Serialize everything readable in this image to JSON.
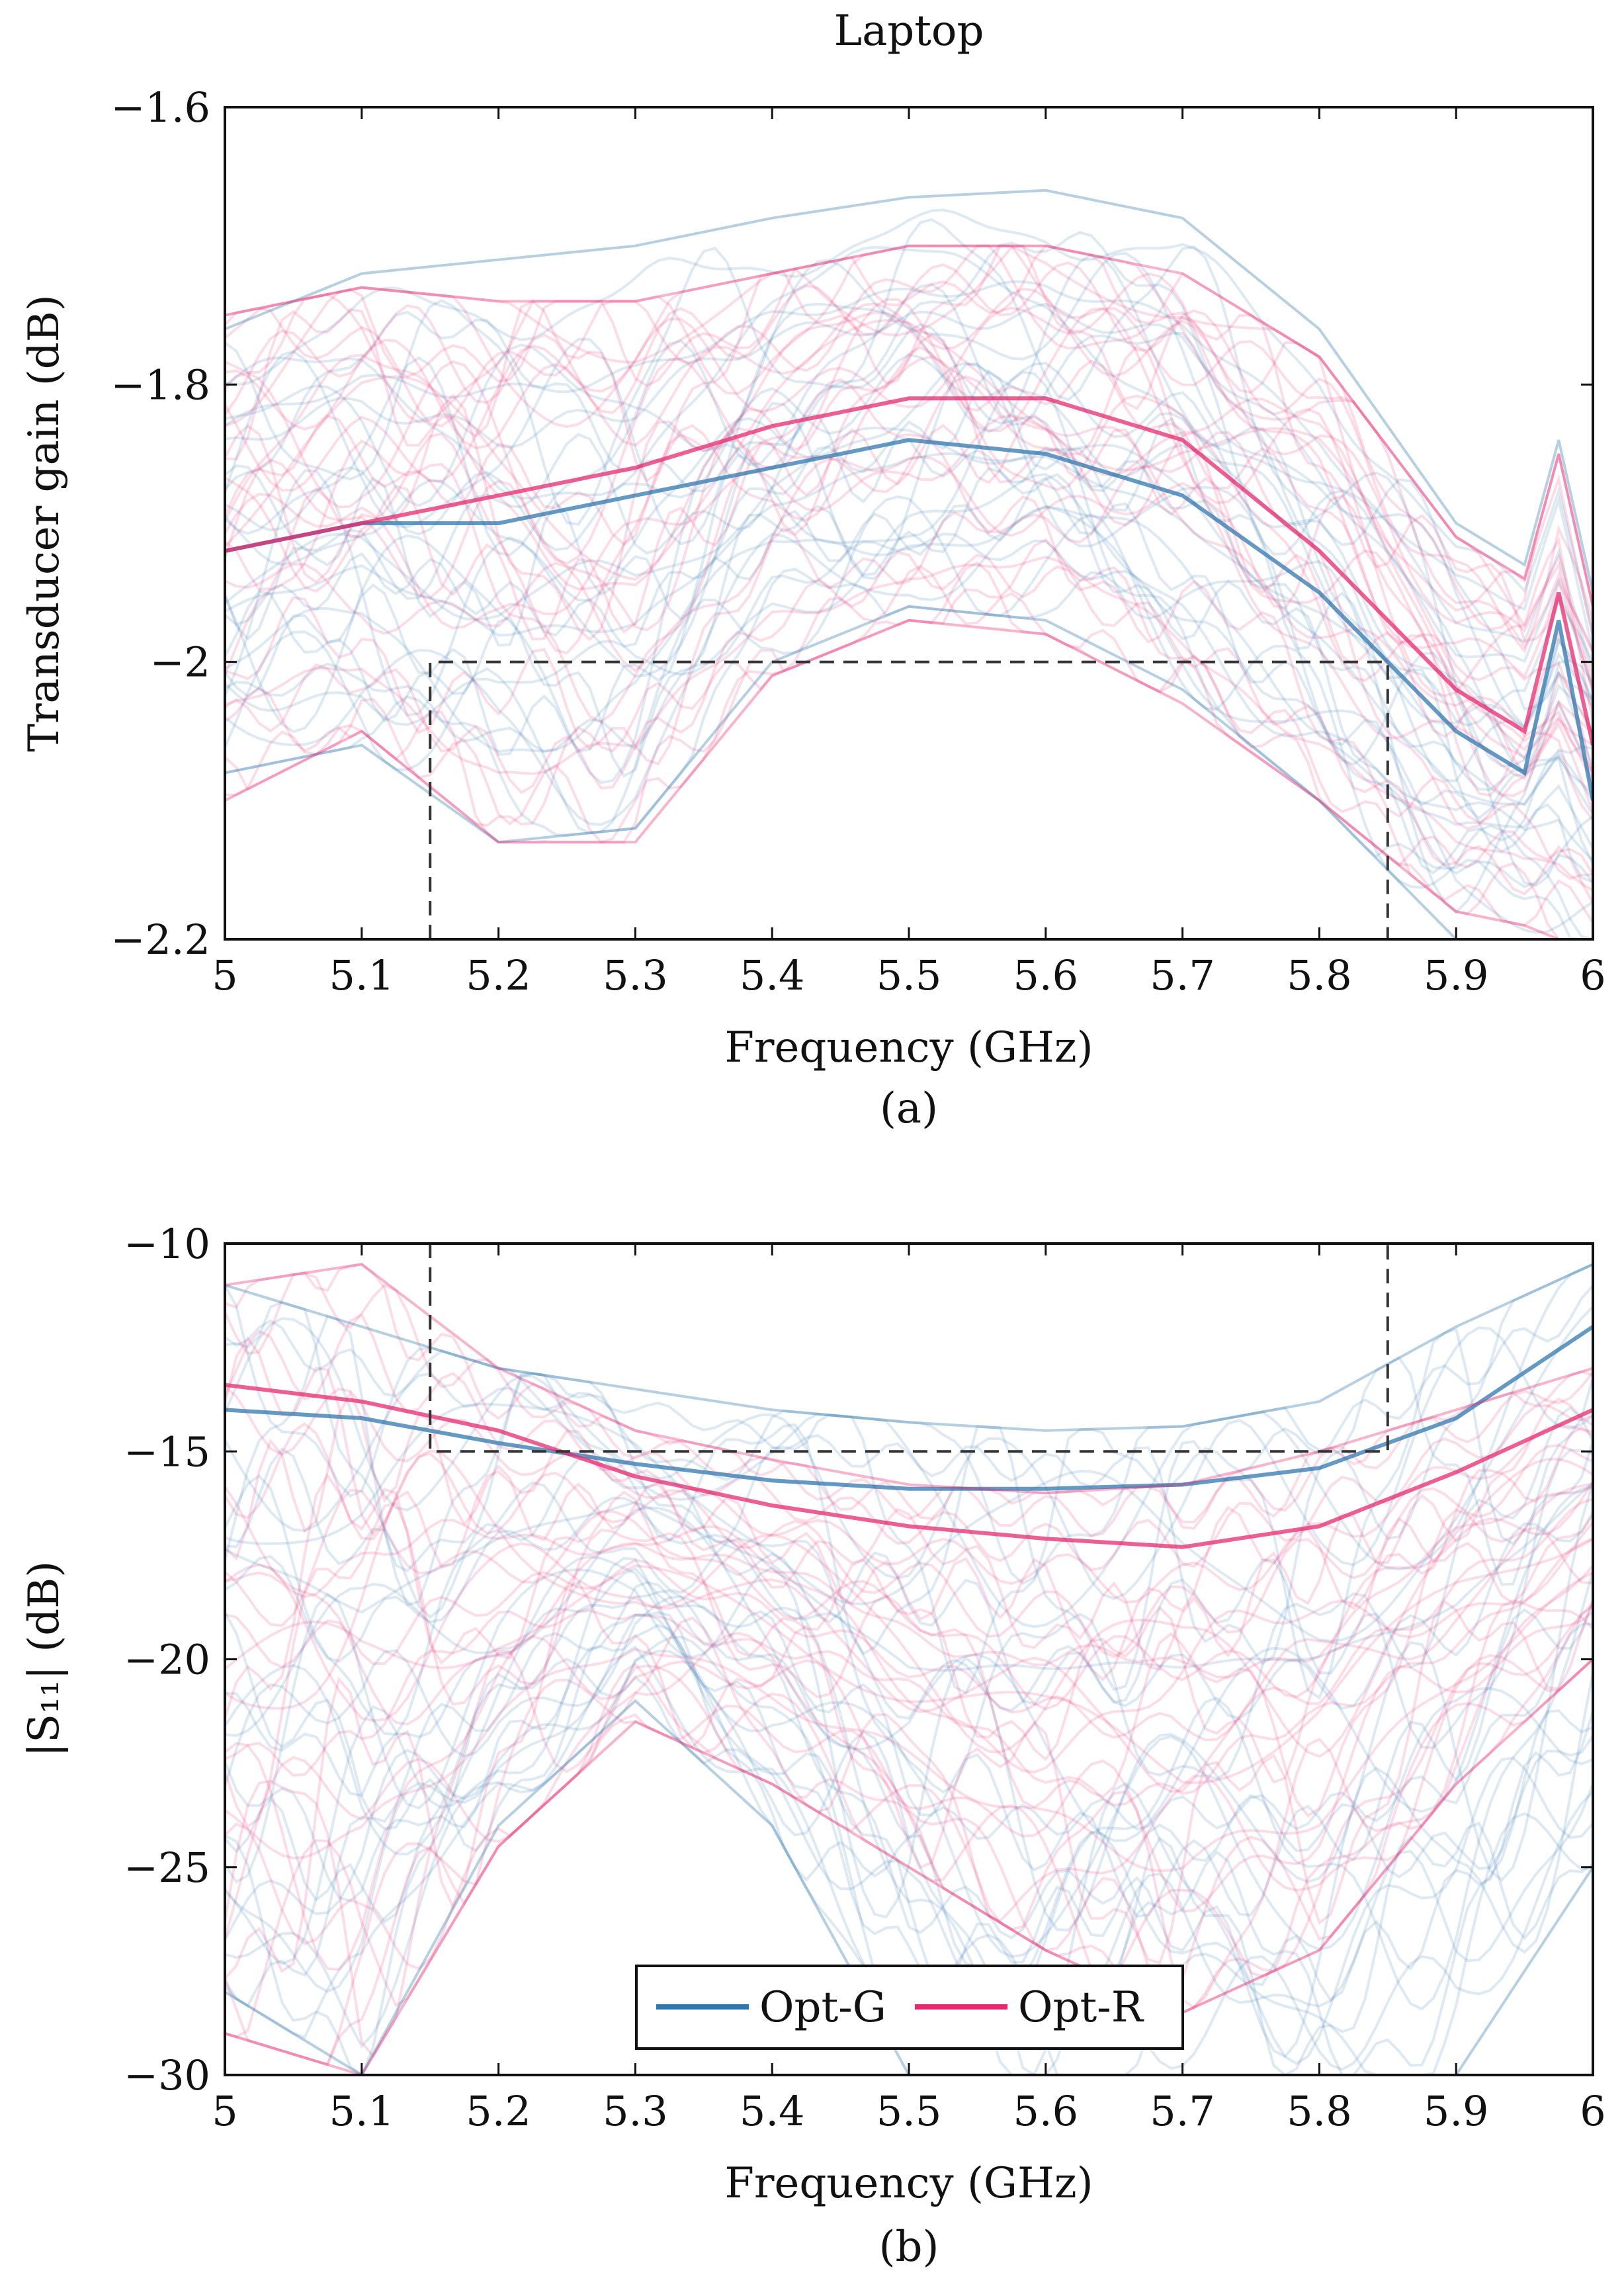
{
  "figure_title": "Laptop",
  "legend": {
    "items": [
      {
        "label": "Opt-G",
        "color": "#2f77ad"
      },
      {
        "label": "Opt-R",
        "color": "#e6296f"
      }
    ]
  },
  "chart_data": [
    {
      "type": "line",
      "id": "a",
      "title": "Laptop",
      "caption": "(a)",
      "xlabel": "Frequency (GHz)",
      "ylabel": "Transducer gain (dB)",
      "xlim": [
        5,
        6
      ],
      "ylim": [
        -2.2,
        -1.6
      ],
      "xticks": [
        5,
        5.1,
        5.2,
        5.3,
        5.4,
        5.5,
        5.6,
        5.7,
        5.8,
        5.9,
        6
      ],
      "xtick_labels": [
        "5",
        "5.1",
        "5.2",
        "5.3",
        "5.4",
        "5.5",
        "5.6",
        "5.7",
        "5.8",
        "5.9",
        "6"
      ],
      "yticks": [
        -2.2,
        -2,
        -1.8,
        -1.6
      ],
      "ytick_labels": [
        "−2.2",
        "−2",
        "−1.8",
        "−1.6"
      ],
      "mask": {
        "x": [
          5.15,
          5.15,
          5.85,
          5.85
        ],
        "y": [
          -2.2,
          -2.0,
          -2.0,
          -2.2
        ]
      },
      "series": [
        {
          "name": "Opt-G",
          "color": "#2f77ad",
          "x": [
            5.0,
            5.1,
            5.2,
            5.3,
            5.4,
            5.5,
            5.6,
            5.7,
            5.8,
            5.9,
            5.95,
            5.975,
            6.0
          ],
          "envelope_upper": [
            -1.76,
            -1.72,
            -1.71,
            -1.7,
            -1.68,
            -1.665,
            -1.66,
            -1.68,
            -1.76,
            -1.9,
            -1.93,
            -1.84,
            -1.95
          ],
          "envelope_lower": [
            -2.08,
            -2.06,
            -2.13,
            -2.12,
            -2.0,
            -1.96,
            -1.97,
            -2.02,
            -2.1,
            -2.2,
            -2.2,
            -2.2,
            -2.2
          ],
          "mean": [
            -1.92,
            -1.9,
            -1.9,
            -1.88,
            -1.86,
            -1.84,
            -1.85,
            -1.88,
            -1.95,
            -2.05,
            -2.08,
            -1.97,
            -2.1
          ]
        },
        {
          "name": "Opt-R",
          "color": "#e6296f",
          "x": [
            5.0,
            5.1,
            5.2,
            5.3,
            5.4,
            5.5,
            5.6,
            5.7,
            5.8,
            5.9,
            5.95,
            5.975,
            6.0
          ],
          "envelope_upper": [
            -1.75,
            -1.73,
            -1.74,
            -1.74,
            -1.72,
            -1.7,
            -1.7,
            -1.72,
            -1.78,
            -1.91,
            -1.94,
            -1.85,
            -1.96
          ],
          "envelope_lower": [
            -2.1,
            -2.05,
            -2.13,
            -2.13,
            -2.01,
            -1.97,
            -1.98,
            -2.03,
            -2.1,
            -2.18,
            -2.19,
            -2.2,
            -2.2
          ],
          "mean": [
            -1.92,
            -1.9,
            -1.88,
            -1.86,
            -1.83,
            -1.81,
            -1.81,
            -1.84,
            -1.92,
            -2.02,
            -2.05,
            -1.95,
            -2.06
          ]
        }
      ]
    },
    {
      "type": "line",
      "id": "b",
      "caption": "(b)",
      "xlabel": "Frequency (GHz)",
      "ylabel": "|S₁₁| (dB)",
      "xlim": [
        5,
        6
      ],
      "ylim": [
        -30,
        -10
      ],
      "xticks": [
        5,
        5.1,
        5.2,
        5.3,
        5.4,
        5.5,
        5.6,
        5.7,
        5.8,
        5.9,
        6
      ],
      "xtick_labels": [
        "5",
        "5.1",
        "5.2",
        "5.3",
        "5.4",
        "5.5",
        "5.6",
        "5.7",
        "5.8",
        "5.9",
        "6"
      ],
      "yticks": [
        -30,
        -25,
        -20,
        -15,
        -10
      ],
      "ytick_labels": [
        "−30",
        "−25",
        "−20",
        "−15",
        "−10"
      ],
      "mask": {
        "x": [
          5.15,
          5.15,
          5.85,
          5.85
        ],
        "y": [
          -10,
          -15,
          -15,
          -10
        ]
      },
      "series": [
        {
          "name": "Opt-G",
          "color": "#2f77ad",
          "x": [
            5.0,
            5.1,
            5.2,
            5.3,
            5.4,
            5.5,
            5.6,
            5.7,
            5.8,
            5.9,
            6.0
          ],
          "envelope_upper": [
            -11.0,
            -12.0,
            -13.0,
            -13.5,
            -14.0,
            -14.3,
            -14.5,
            -14.4,
            -13.8,
            -12.0,
            -10.5
          ],
          "envelope_lower": [
            -28.0,
            -30.0,
            -24.0,
            -21.0,
            -24.0,
            -30.0,
            -30.0,
            -30.0,
            -30.0,
            -30.0,
            -25.0
          ],
          "mean": [
            -14.0,
            -14.2,
            -14.8,
            -15.3,
            -15.7,
            -15.9,
            -15.9,
            -15.8,
            -15.4,
            -14.2,
            -12.0
          ]
        },
        {
          "name": "Opt-R",
          "color": "#e6296f",
          "x": [
            5.0,
            5.1,
            5.2,
            5.3,
            5.4,
            5.5,
            5.6,
            5.7,
            5.8,
            5.9,
            6.0
          ],
          "envelope_upper": [
            -11.0,
            -10.5,
            -13.0,
            -14.5,
            -15.2,
            -15.8,
            -16.0,
            -15.8,
            -15.0,
            -14.0,
            -13.0
          ],
          "envelope_lower": [
            -29.0,
            -30.0,
            -24.5,
            -21.5,
            -23.0,
            -25.0,
            -27.0,
            -28.5,
            -27.0,
            -23.0,
            -20.0
          ],
          "mean": [
            -13.4,
            -13.8,
            -14.5,
            -15.6,
            -16.3,
            -16.8,
            -17.1,
            -17.3,
            -16.8,
            -15.5,
            -14.0
          ]
        }
      ]
    }
  ]
}
